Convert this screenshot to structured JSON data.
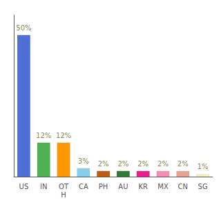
{
  "chart_data": {
    "type": "bar",
    "categories": [
      "US",
      "IN",
      "OT\nH",
      "CA",
      "PH",
      "AU",
      "KR",
      "MX",
      "CN",
      "SG"
    ],
    "values": [
      50,
      12,
      12,
      3,
      2,
      2,
      2,
      2,
      2,
      1
    ],
    "value_labels": [
      "50%",
      "12%",
      "12%",
      "3%",
      "2%",
      "2%",
      "2%",
      "2%",
      "2%",
      "1%"
    ],
    "colors": [
      "#4d6fd6",
      "#4caf50",
      "#ff9800",
      "#87ceeb",
      "#c05c10",
      "#2e7d32",
      "#e91e8c",
      "#f48fb1",
      "#e8a090",
      "#f0f0c0"
    ],
    "ylim": [
      0,
      57
    ],
    "grid": false,
    "data_labels": true,
    "tick_labels": "x"
  }
}
